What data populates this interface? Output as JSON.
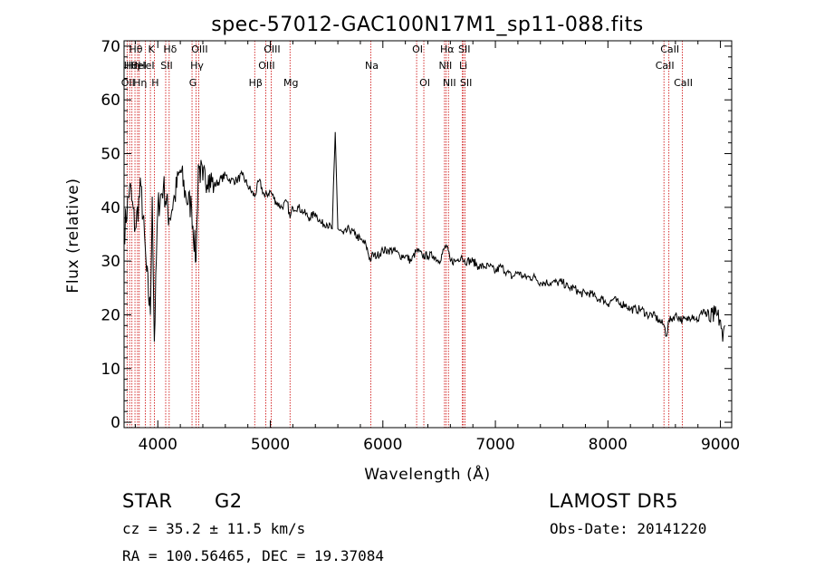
{
  "chart_data": {
    "type": "line",
    "title": "spec-57012-GAC100N17M1_sp11-088.fits",
    "xlabel": "Wavelength (Å)",
    "ylabel": "Flux (relative)",
    "xlim": [
      3700,
      9100
    ],
    "ylim": [
      -1,
      71
    ],
    "xticks": [
      4000,
      5000,
      6000,
      7000,
      8000,
      9000
    ],
    "yticks": [
      0,
      10,
      20,
      30,
      40,
      50,
      60,
      70
    ],
    "grid": false,
    "line_color": "#000000",
    "marker_color": "#cc0000",
    "series": [
      {
        "x": [
          3700,
          3750,
          3800,
          3850,
          3900,
          3934,
          3950,
          3969,
          4000,
          4050,
          4101,
          4150,
          4200,
          4250,
          4300,
          4340,
          4360,
          4400,
          4450,
          4500,
          4550,
          4600,
          4650,
          4700,
          4750,
          4800,
          4861,
          4900,
          4950,
          5000,
          5050,
          5100,
          5150,
          5175,
          5200,
          5250,
          5300,
          5350,
          5400,
          5450,
          5500,
          5550,
          5577,
          5600,
          5650,
          5700,
          5750,
          5800,
          5850,
          5890,
          5900,
          5950,
          6000,
          6050,
          6100,
          6150,
          6200,
          6250,
          6300,
          6350,
          6400,
          6450,
          6500,
          6563,
          6600,
          6650,
          6700,
          6720,
          6750,
          6800,
          6850,
          6900,
          6950,
          7000,
          7050,
          7100,
          7150,
          7200,
          7250,
          7300,
          7350,
          7400,
          7450,
          7500,
          7550,
          7600,
          7650,
          7700,
          7750,
          7800,
          7850,
          7900,
          7950,
          8000,
          8050,
          8100,
          8150,
          8200,
          8250,
          8300,
          8350,
          8400,
          8450,
          8500,
          8520,
          8542,
          8560,
          8600,
          8662,
          8700,
          8750,
          8800,
          8850,
          8900,
          8950,
          9000,
          9020,
          9040
        ],
        "y": [
          35,
          44,
          36,
          44,
          28,
          20,
          42,
          15,
          40,
          44,
          38,
          42,
          47,
          42,
          40,
          30,
          48,
          45,
          46,
          44,
          45,
          46,
          45,
          45,
          46,
          44,
          42,
          45,
          42,
          43,
          41,
          40,
          41,
          38,
          40,
          40,
          39,
          38,
          39,
          37,
          37,
          36,
          54,
          36,
          35,
          36,
          35,
          34,
          33,
          30,
          31,
          31,
          32,
          32,
          32,
          31,
          31,
          30,
          32,
          31,
          31,
          31,
          30,
          33,
          30,
          30,
          31,
          30,
          30,
          30,
          29,
          29,
          29,
          28,
          29,
          28,
          27,
          28,
          27,
          27,
          27,
          26,
          26,
          26,
          26,
          26,
          25,
          25,
          24,
          24,
          24,
          23,
          23,
          22,
          23,
          22,
          22,
          21,
          21,
          21,
          20,
          20,
          19,
          18,
          16,
          19,
          19,
          20,
          19,
          19,
          20,
          19,
          21,
          19,
          20,
          19,
          15,
          18
        ]
      }
    ],
    "lines": [
      {
        "wl": 3727,
        "row": 2,
        "label": "OII"
      },
      {
        "wl": 3750,
        "row": 1,
        "label": "Hθ"
      },
      {
        "wl": 3770,
        "row": 1,
        "label": "Hη"
      },
      {
        "wl": 3797,
        "row": 0,
        "label": "Hθ"
      },
      {
        "wl": 3820,
        "row": 1,
        "label": "HeI"
      },
      {
        "wl": 3835,
        "row": 2,
        "label": "Hη"
      },
      {
        "wl": 3889,
        "row": 1,
        "label": "HeI"
      },
      {
        "wl": 3934,
        "row": 0,
        "label": "K"
      },
      {
        "wl": 3969,
        "row": 2,
        "label": "H"
      },
      {
        "wl": 4070,
        "row": 1,
        "label": "SII"
      },
      {
        "wl": 4101,
        "row": 0,
        "label": "Hδ"
      },
      {
        "wl": 4304,
        "row": 2,
        "label": "G"
      },
      {
        "wl": 4340,
        "row": 1,
        "label": "Hγ"
      },
      {
        "wl": 4363,
        "row": 0,
        "label": "OIII"
      },
      {
        "wl": 4861,
        "row": 2,
        "label": "Hβ"
      },
      {
        "wl": 4959,
        "row": 1,
        "label": "OIII"
      },
      {
        "wl": 5007,
        "row": 0,
        "label": "OIII"
      },
      {
        "wl": 5175,
        "row": 2,
        "label": "Mg"
      },
      {
        "wl": 5893,
        "row": 1,
        "label": "Na"
      },
      {
        "wl": 6300,
        "row": 0,
        "label": "OI"
      },
      {
        "wl": 6364,
        "row": 2,
        "label": "OI"
      },
      {
        "wl": 6548,
        "row": 1,
        "label": "NII"
      },
      {
        "wl": 6563,
        "row": 0,
        "label": "Hα"
      },
      {
        "wl": 6583,
        "row": 2,
        "label": "NII"
      },
      {
        "wl": 6707,
        "row": 1,
        "label": "Li"
      },
      {
        "wl": 6716,
        "row": 0,
        "label": "SII"
      },
      {
        "wl": 6731,
        "row": 2,
        "label": "SII"
      },
      {
        "wl": 8498,
        "row": 1,
        "label": "CaII"
      },
      {
        "wl": 8542,
        "row": 0,
        "label": "CaII"
      },
      {
        "wl": 8662,
        "row": 2,
        "label": "CaII"
      }
    ]
  },
  "info": {
    "class": "STAR",
    "subclass": "G2",
    "survey": "LAMOST DR5",
    "cz": "cz = 35.2 ± 11.5 km/s",
    "obs_date": "Obs-Date: 20141220",
    "coords": "RA = 100.56465, DEC =  19.37084"
  }
}
